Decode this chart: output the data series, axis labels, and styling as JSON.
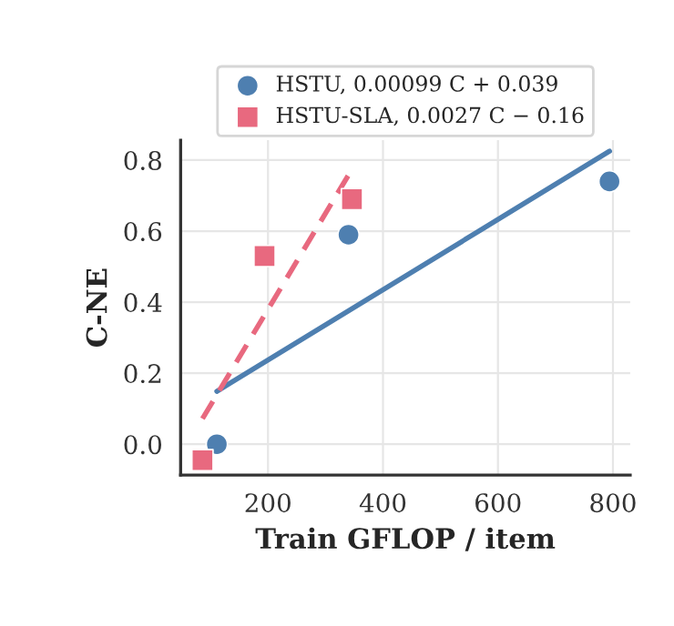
{
  "chart_data": {
    "type": "scatter",
    "xlabel": "Train GFLOP / item",
    "ylabel": "C-NE",
    "series": [
      {
        "name": "HSTU, 0.00099 C + 0.039",
        "color": "#4e7fb0",
        "x": [
          111,
          340,
          794
        ],
        "values": [
          0.0,
          0.59,
          0.74
        ],
        "marker": "circle"
      },
      {
        "name": "HSTU-SLA, 0.0027 C − 0.16",
        "color": "#e8697f",
        "x": [
          86,
          194,
          346
        ],
        "values": [
          -0.045,
          0.53,
          0.69
        ],
        "marker": "square"
      },
      {
        "type": "line",
        "color": "#4e7fb0",
        "x": [
          111,
          794
        ],
        "values": [
          0.149,
          0.825
        ],
        "line_style": "solid"
      },
      {
        "type": "line",
        "color": "#e8697f",
        "x": [
          86,
          340
        ],
        "values": [
          0.072,
          0.758
        ],
        "line_style": "dashed"
      }
    ],
    "xlim": [
      48,
      830
    ],
    "ylim": [
      -0.087,
      0.856
    ],
    "xticks": [
      200,
      400,
      600,
      800
    ],
    "yticks": [
      {
        "value": 0,
        "label": "0.0"
      },
      {
        "value": 0.2,
        "label": "0.2"
      },
      {
        "value": 0.4,
        "label": "0.4"
      },
      {
        "value": 0.6,
        "label": "0.6"
      },
      {
        "value": 0.8,
        "label": "0.8"
      }
    ],
    "grid": true,
    "legend": "top"
  }
}
